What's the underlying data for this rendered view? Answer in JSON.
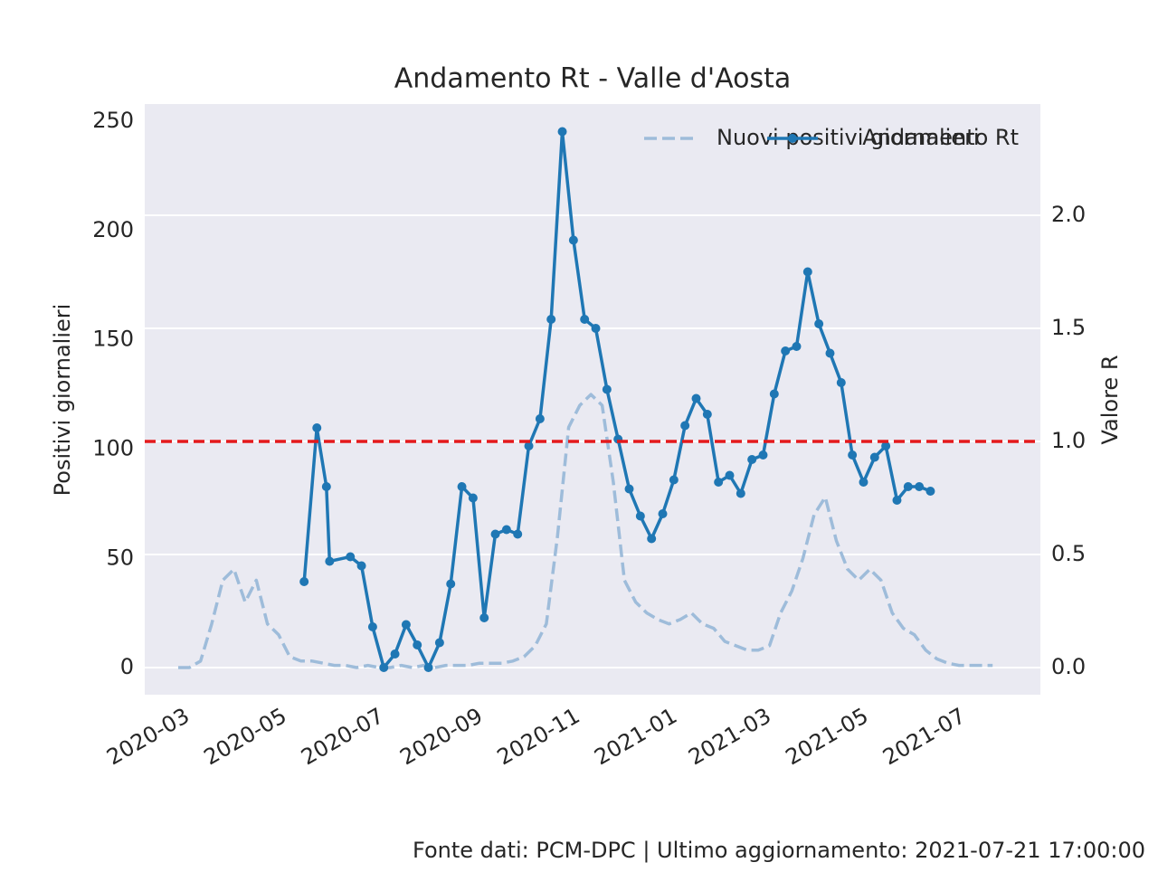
{
  "chart_data": {
    "type": "line",
    "title": "Andamento Rt - Valle d'Aosta",
    "ylabel": "Positivi giornalieri",
    "y2label": "Valore R",
    "footer": "Fonte dati: PCM-DPC | Ultimo aggiornamento: 2021-07-21 17:00:00",
    "xlim": [
      "2020-02-03",
      "2021-08-18"
    ],
    "xticks": [
      "2020-03",
      "2020-05",
      "2020-07",
      "2020-09",
      "2020-11",
      "2021-01",
      "2021-03",
      "2021-05",
      "2021-07"
    ],
    "ylim": [
      -12.4,
      257.9
    ],
    "yticks": [
      0,
      50,
      100,
      150,
      200,
      250
    ],
    "y2lim": [
      -0.12,
      2.492
    ],
    "y2ticks": [
      {
        "value": 0,
        "label": "0.0"
      },
      {
        "value": 0.5,
        "label": "0.5"
      },
      {
        "value": 1,
        "label": "1.0"
      },
      {
        "value": 1.5,
        "label": "1.5"
      },
      {
        "value": 2,
        "label": "2.0"
      }
    ],
    "grid": "y2",
    "legend": "upper right",
    "hline": {
      "value": 1,
      "axis": "y2",
      "color": "#e41a1c"
    },
    "series": [
      {
        "name": "Nuovi positivi giornalieri",
        "color": "#9ebcda",
        "dashed": true,
        "axis": "y",
        "x": [
          "2020-02-24",
          "2020-03-02",
          "2020-03-09",
          "2020-03-16",
          "2020-03-23",
          "2020-03-30",
          "2020-04-06",
          "2020-04-13",
          "2020-04-20",
          "2020-04-27",
          "2020-05-04",
          "2020-05-11",
          "2020-05-18",
          "2020-05-25",
          "2020-06-01",
          "2020-06-08",
          "2020-06-15",
          "2020-06-22",
          "2020-06-29",
          "2020-07-06",
          "2020-07-13",
          "2020-07-20",
          "2020-07-27",
          "2020-08-03",
          "2020-08-10",
          "2020-08-17",
          "2020-08-24",
          "2020-08-31",
          "2020-09-07",
          "2020-09-14",
          "2020-09-21",
          "2020-09-28",
          "2020-10-05",
          "2020-10-12",
          "2020-10-19",
          "2020-10-26",
          "2020-11-02",
          "2020-11-09",
          "2020-11-16",
          "2020-11-23",
          "2020-11-30",
          "2020-12-07",
          "2020-12-14",
          "2020-12-21",
          "2020-12-28",
          "2021-01-04",
          "2021-01-11",
          "2021-01-18",
          "2021-01-25",
          "2021-02-01",
          "2021-02-08",
          "2021-02-15",
          "2021-02-22",
          "2021-03-01",
          "2021-03-08",
          "2021-03-15",
          "2021-03-22",
          "2021-03-29",
          "2021-04-05",
          "2021-04-12",
          "2021-04-19",
          "2021-04-26",
          "2021-05-03",
          "2021-05-10",
          "2021-05-17",
          "2021-05-24",
          "2021-05-31",
          "2021-06-07",
          "2021-06-14",
          "2021-06-21",
          "2021-06-28",
          "2021-07-05",
          "2021-07-12",
          "2021-07-19"
        ],
        "values": [
          0,
          0,
          3,
          20,
          40,
          45,
          30,
          40,
          20,
          15,
          5,
          3,
          3,
          2,
          1,
          1,
          0,
          1,
          0,
          0,
          1,
          0,
          1,
          0,
          1,
          1,
          1,
          2,
          2,
          2,
          3,
          5,
          10,
          20,
          60,
          110,
          120,
          125,
          120,
          85,
          40,
          30,
          25,
          22,
          20,
          22,
          25,
          20,
          18,
          12,
          10,
          8,
          8,
          10,
          25,
          35,
          50,
          70,
          78,
          58,
          45,
          40,
          45,
          40,
          25,
          18,
          15,
          8,
          4,
          2,
          1,
          1,
          1,
          1
        ]
      },
      {
        "name": "Andamento Rt",
        "color": "#1f77b4",
        "dashed": false,
        "markers": true,
        "axis": "y2",
        "x": [
          "2020-05-13",
          "2020-05-21",
          "2020-05-27",
          "2020-05-29",
          "2020-06-11",
          "2020-06-18",
          "2020-06-25",
          "2020-07-02",
          "2020-07-09",
          "2020-07-16",
          "2020-07-23",
          "2020-07-30",
          "2020-08-06",
          "2020-08-13",
          "2020-08-20",
          "2020-08-27",
          "2020-09-03",
          "2020-09-10",
          "2020-09-17",
          "2020-09-24",
          "2020-10-01",
          "2020-10-08",
          "2020-10-15",
          "2020-10-22",
          "2020-10-29",
          "2020-11-05",
          "2020-11-12",
          "2020-11-19",
          "2020-11-26",
          "2020-12-03",
          "2020-12-10",
          "2020-12-17",
          "2020-12-24",
          "2020-12-31",
          "2021-01-07",
          "2021-01-14",
          "2021-01-21",
          "2021-01-28",
          "2021-02-04",
          "2021-02-11",
          "2021-02-18",
          "2021-02-25",
          "2021-03-04",
          "2021-03-11",
          "2021-03-18",
          "2021-03-25",
          "2021-04-01",
          "2021-04-08",
          "2021-04-15",
          "2021-04-22",
          "2021-04-29",
          "2021-05-06",
          "2021-05-13",
          "2021-05-20",
          "2021-05-27",
          "2021-06-03",
          "2021-06-10"
        ],
        "values": [
          0.38,
          1.06,
          0.8,
          0.47,
          0.49,
          0.45,
          0.18,
          0,
          0.06,
          0.19,
          0.1,
          0,
          0.11,
          0.37,
          0.8,
          0.75,
          0.22,
          0.59,
          0.61,
          0.59,
          0.98,
          1.1,
          1.54,
          2.37,
          1.89,
          1.54,
          1.5,
          1.23,
          1.01,
          0.79,
          0.67,
          0.57,
          0.68,
          0.83,
          1.07,
          1.19,
          1.12,
          0.82,
          0.85,
          0.77,
          0.92,
          0.94,
          1.21,
          1.4,
          1.42,
          1.75,
          1.52,
          1.39,
          1.26,
          0.94,
          0.82,
          0.93,
          0.98,
          0.74,
          0.8,
          0.8,
          0.78
        ]
      }
    ]
  }
}
